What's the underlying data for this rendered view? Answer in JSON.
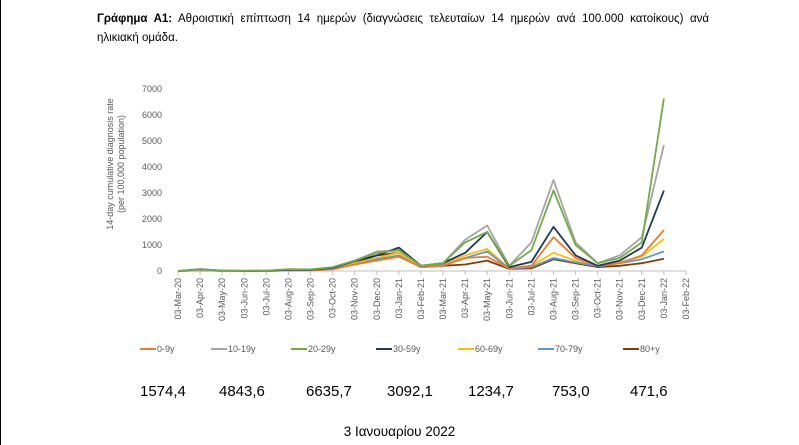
{
  "caption": {
    "label": "Γράφημα Α1:",
    "text": " Αθροιστική επίπτωση 14 ημερών (διαγνώσεις τελευταίων 14 ημερών ανά 100.000 κατοίκους) ανά ηλικιακή ομάδα."
  },
  "chart_data": {
    "type": "line",
    "title": "",
    "ylabel": "14-day cumulative diagnosis rate (per 100,000 population)",
    "xlabel": "",
    "ylim": [
      0,
      7000
    ],
    "yticks": [
      "0",
      "1000",
      "2000",
      "3000",
      "4000",
      "5000",
      "6000",
      "7000"
    ],
    "grid": false,
    "legend_position": "bottom",
    "xticks": [
      "03-Mar-20",
      "03-Apr-20",
      "03-May-20",
      "03-Jun-20",
      "03-Jul-20",
      "03-Aug-20",
      "03-Sep-20",
      "03-Oct-20",
      "03-Nov-20",
      "03-Dec-20",
      "03-Jan-21",
      "03-Feb-21",
      "03-Mar-21",
      "03-Apr-21",
      "03-May-21",
      "03-Jun-21",
      "03-Jul-21",
      "03-Aug-21",
      "03-Sep-21",
      "03-Oct-21",
      "03-Nov-21",
      "03-Dec-21",
      "03-Jan-22",
      "03-Feb-22"
    ],
    "x": [
      "03-Mar-20",
      "03-Apr-20",
      "03-May-20",
      "03-Jun-20",
      "03-Jul-20",
      "03-Aug-20",
      "03-Sep-20",
      "03-Oct-20",
      "03-Nov-20",
      "03-Dec-20",
      "03-Jan-21",
      "03-Feb-21",
      "03-Mar-21",
      "03-Apr-21",
      "03-May-21",
      "03-Jun-21",
      "03-Jul-21",
      "03-Aug-21",
      "03-Sep-21",
      "03-Oct-21",
      "03-Nov-21",
      "03-Dec-21",
      "03-Jan-22"
    ],
    "series": [
      {
        "name": "0-9y",
        "color": "#ED7D31",
        "values": [
          0,
          20,
          5,
          3,
          5,
          20,
          25,
          60,
          250,
          400,
          550,
          150,
          200,
          500,
          550,
          100,
          200,
          1300,
          500,
          200,
          300,
          600,
          1574.4
        ]
      },
      {
        "name": "10-19y",
        "color": "#A5A5A5",
        "values": [
          0,
          50,
          10,
          5,
          10,
          45,
          50,
          120,
          400,
          750,
          800,
          200,
          300,
          1200,
          1750,
          200,
          1100,
          3500,
          1100,
          300,
          600,
          1300,
          4843.6
        ]
      },
      {
        "name": "20-29y",
        "color": "#70AD47",
        "values": [
          0,
          60,
          15,
          10,
          15,
          70,
          60,
          150,
          400,
          700,
          800,
          200,
          300,
          1100,
          1500,
          200,
          800,
          3100,
          1000,
          300,
          500,
          1100,
          6635.7
        ]
      },
      {
        "name": "30-59y",
        "color": "#1F3864",
        "values": [
          0,
          70,
          15,
          5,
          10,
          45,
          45,
          120,
          380,
          600,
          900,
          200,
          300,
          700,
          1500,
          150,
          350,
          1700,
          600,
          200,
          400,
          900,
          3092.1
        ]
      },
      {
        "name": "60-69y",
        "color": "#FFC000",
        "values": [
          0,
          40,
          10,
          3,
          5,
          25,
          35,
          90,
          300,
          500,
          700,
          150,
          250,
          600,
          850,
          100,
          200,
          700,
          400,
          200,
          350,
          550,
          1234.7
        ]
      },
      {
        "name": "70-79y",
        "color": "#5B9BD5",
        "values": [
          0,
          30,
          5,
          2,
          5,
          20,
          30,
          80,
          250,
          450,
          600,
          140,
          220,
          500,
          750,
          90,
          150,
          500,
          330,
          180,
          300,
          450,
          753.0
        ]
      },
      {
        "name": "80+y",
        "color": "#843C0C",
        "values": [
          0,
          30,
          5,
          2,
          5,
          20,
          40,
          100,
          300,
          600,
          700,
          150,
          200,
          250,
          400,
          80,
          100,
          450,
          300,
          150,
          200,
          300,
          471.6
        ]
      }
    ]
  },
  "latest_values": [
    "1574,4",
    "4843,6",
    "6635,7",
    "3092,1",
    "1234,7",
    "753,0",
    "471,6"
  ],
  "date_line": "3 Ιανουαρίου 2022"
}
